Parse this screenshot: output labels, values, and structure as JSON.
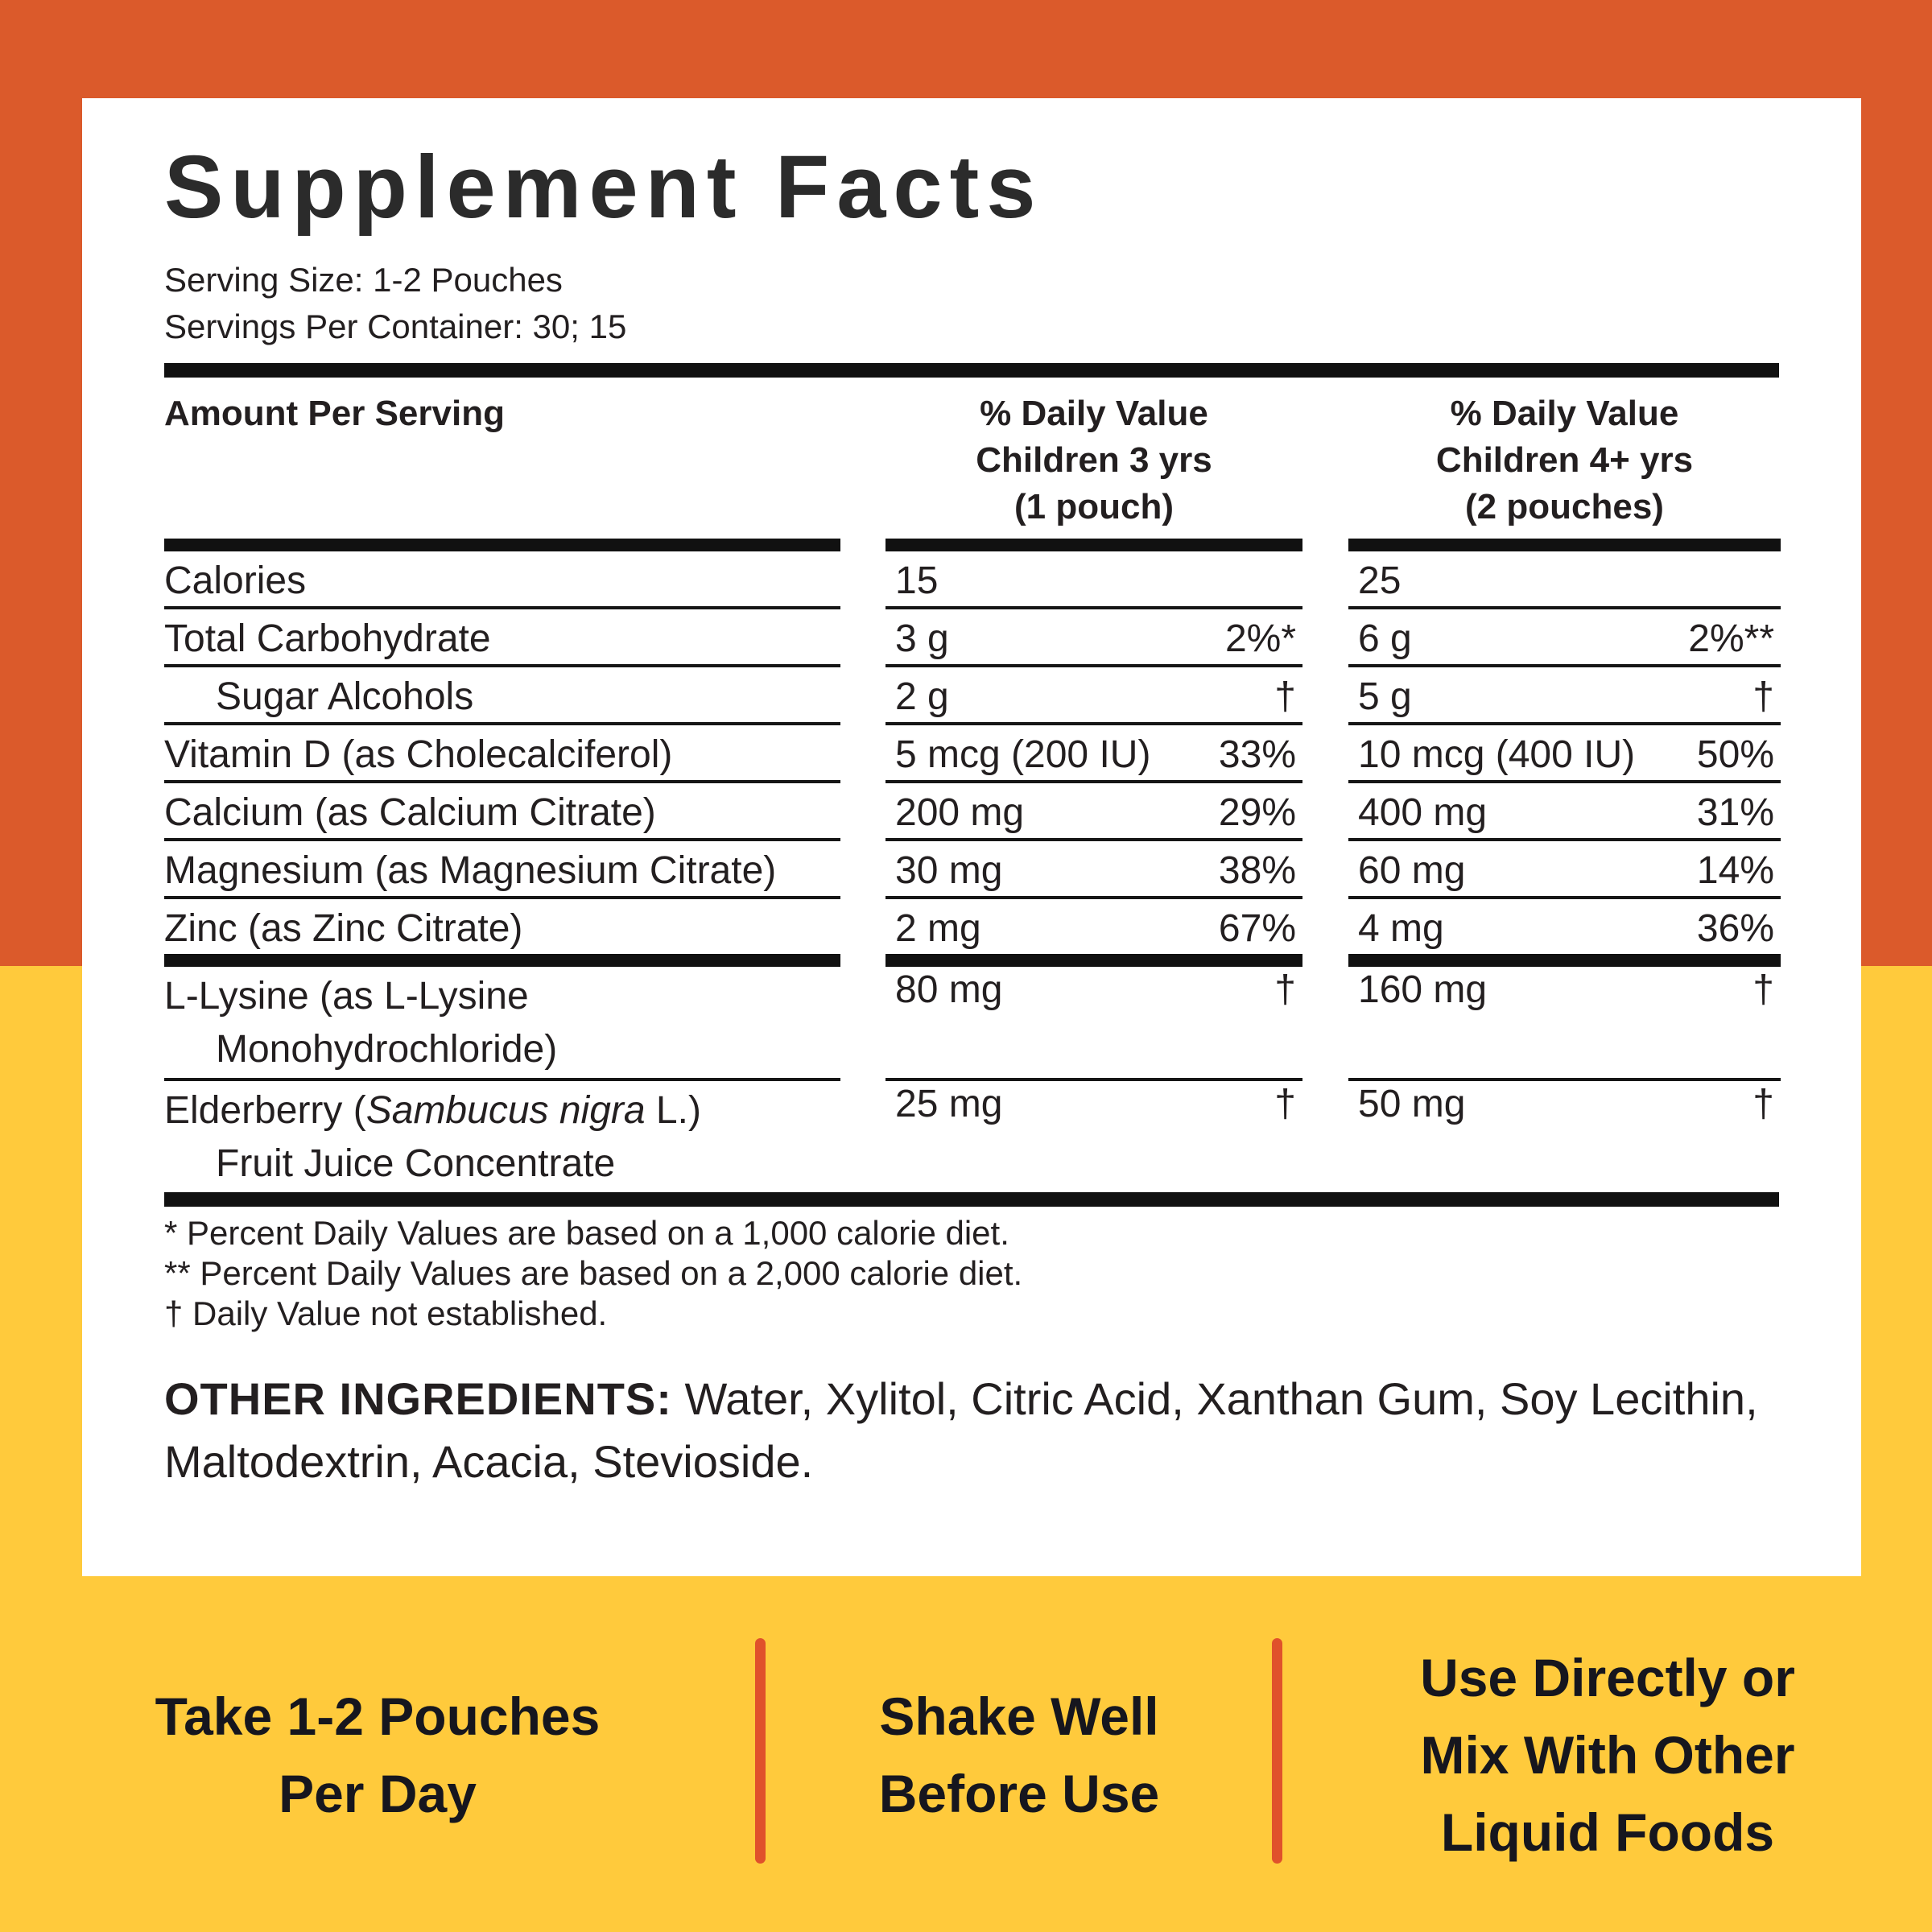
{
  "colors": {
    "band_top_orange": "#DB5A2B",
    "band_bottom_yellow": "#FFCA3C",
    "panel_bg": "#FFFFFF",
    "text_dark": "#231F20",
    "rule_black": "#111111",
    "divider_orange": "#E0512B",
    "bottom_text": "#16161E"
  },
  "panel": {
    "title": "Supplement Facts",
    "serving_size": "Serving Size: 1-2 Pouches",
    "servings_per_container": "Servings Per Container: 30; 15",
    "header": {
      "col1": "Amount Per Serving",
      "col2_line1": "% Daily Value",
      "col2_line2": "Children 3 yrs",
      "col2_line3": "(1 pouch)",
      "col3_line1": "% Daily Value",
      "col3_line2": "Children 4+ yrs",
      "col3_line3": "(2 pouches)"
    },
    "rows": [
      {
        "name": "Calories",
        "amt1": "15",
        "pct1": "",
        "amt2": "25",
        "pct2": ""
      },
      {
        "name": "Total Carbohydrate",
        "amt1": "3 g",
        "pct1": "2%*",
        "amt2": "6 g",
        "pct2": "2%**"
      },
      {
        "name": "Sugar Alcohols",
        "amt1": "2 g",
        "pct1": "†",
        "amt2": "5 g",
        "pct2": "†"
      },
      {
        "name": "Vitamin D (as Cholecalciferol)",
        "amt1": "5 mcg (200 IU)",
        "pct1": "33%",
        "amt2": "10 mcg (400 IU)",
        "pct2": "50%"
      },
      {
        "name": "Calcium (as Calcium Citrate)",
        "amt1": "200 mg",
        "pct1": "29%",
        "amt2": "400 mg",
        "pct2": "31%"
      },
      {
        "name": "Magnesium (as Magnesium Citrate)",
        "amt1": "30 mg",
        "pct1": "38%",
        "amt2": "60 mg",
        "pct2": "14%"
      },
      {
        "name": "Zinc (as Zinc Citrate)",
        "amt1": "2 mg",
        "pct1": "67%",
        "amt2": "4 mg",
        "pct2": "36%"
      },
      {
        "name": "L-Lysine (as L-Lysine",
        "name2": "Monohydrochloride)",
        "amt1": "80 mg",
        "pct1": "†",
        "amt2": "160 mg",
        "pct2": "†"
      },
      {
        "name_pre": "Elderberry (",
        "name_it": "Sambucus nigra",
        "name_post": " L.)",
        "name2": "Fruit Juice Concentrate",
        "amt1": "25 mg",
        "pct1": "†",
        "amt2": "50 mg",
        "pct2": "†"
      }
    ],
    "footnotes": [
      "* Percent Daily Values are based on a 1,000 calorie diet.",
      "** Percent Daily Values are based on a 2,000 calorie diet.",
      "† Daily Value not established."
    ],
    "other_ingredients_label": "OTHER INGREDIENTS:",
    "other_ingredients_text": " Water, Xylitol, Citric Acid, Xanthan Gum, Soy Lecithin, Maltodextrin, Acacia, Stevioside."
  },
  "bottom": {
    "items": [
      {
        "line1": "Take 1-2 Pouches",
        "line2": "Per Day",
        "line3": ""
      },
      {
        "line1": "Shake Well",
        "line2": "Before Use",
        "line3": ""
      },
      {
        "line1": "Use Directly or",
        "line2": "Mix With Other",
        "line3": "Liquid Foods"
      }
    ]
  }
}
